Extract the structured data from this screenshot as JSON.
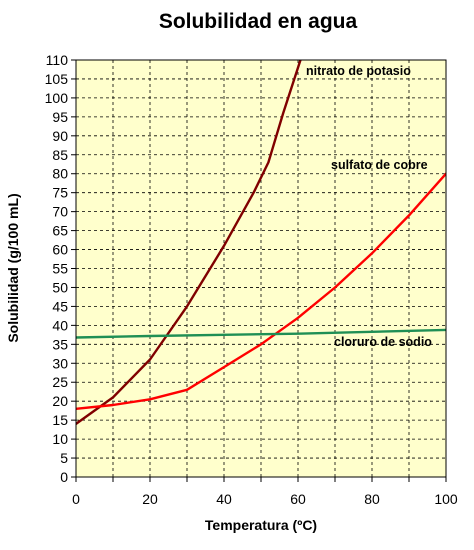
{
  "chart_data": {
    "type": "line",
    "title": "Solubilidad en agua",
    "xlabel": "Temperatura (ºC)",
    "ylabel": "Solubilidad (g/100 mL)",
    "xlim": [
      0,
      100
    ],
    "ylim": [
      0,
      110
    ],
    "x_ticks": [
      0,
      20,
      40,
      60,
      80,
      100
    ],
    "y_ticks": [
      0,
      5,
      10,
      15,
      20,
      25,
      30,
      35,
      40,
      45,
      50,
      55,
      60,
      65,
      70,
      75,
      80,
      85,
      90,
      95,
      100,
      105,
      110
    ],
    "grid": true,
    "plot_background": "#ffffcc",
    "series": [
      {
        "name": "nitrato de potasio",
        "color": "#800000",
        "points": [
          [
            0,
            14
          ],
          [
            10,
            21
          ],
          [
            20,
            31
          ],
          [
            30,
            45
          ],
          [
            40,
            61
          ],
          [
            48,
            75
          ],
          [
            52,
            83
          ],
          [
            56,
            96
          ],
          [
            60,
            108
          ],
          [
            61,
            111
          ]
        ]
      },
      {
        "name": "sulfato de cobre",
        "color": "#ff0000",
        "points": [
          [
            0,
            18
          ],
          [
            10,
            19
          ],
          [
            20,
            20.5
          ],
          [
            30,
            23
          ],
          [
            40,
            29
          ],
          [
            50,
            35
          ],
          [
            60,
            42
          ],
          [
            70,
            50
          ],
          [
            80,
            59
          ],
          [
            90,
            69
          ],
          [
            100,
            80
          ]
        ]
      },
      {
        "name": "cloruro de sodio",
        "color": "#1f8f55",
        "points": [
          [
            0,
            36.8
          ],
          [
            20,
            37.2
          ],
          [
            40,
            37.5
          ],
          [
            60,
            37.8
          ],
          [
            80,
            38.3
          ],
          [
            100,
            38.8
          ]
        ]
      }
    ]
  }
}
